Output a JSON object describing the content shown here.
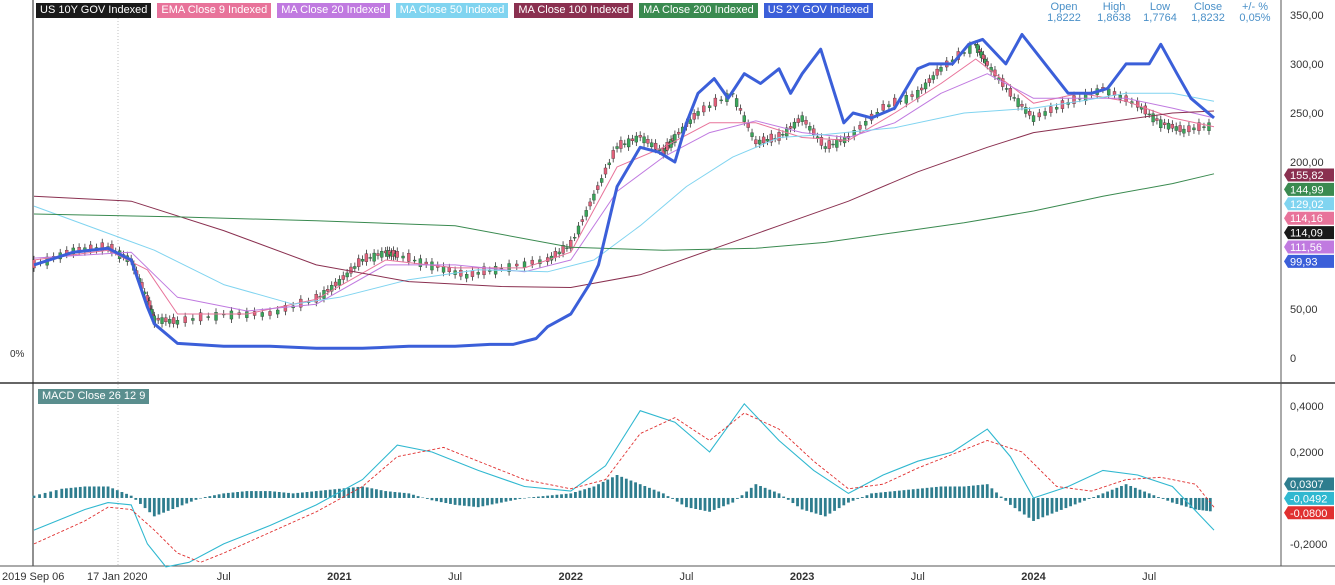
{
  "legend": [
    {
      "label": "US 10Y GOV Indexed",
      "color": "#1a1a1a"
    },
    {
      "label": "EMA Close 9 Indexed",
      "color": "#e8739a"
    },
    {
      "label": "MA Close 20 Indexed",
      "color": "#c07ae0"
    },
    {
      "label": "MA Close 50 Indexed",
      "color": "#80d4f0"
    },
    {
      "label": "MA Close 100 Indexed",
      "color": "#8a3050"
    },
    {
      "label": "MA Close 200 Indexed",
      "color": "#3a8a50"
    },
    {
      "label": "US 2Y GOV Indexed",
      "color": "#3b5fd9"
    }
  ],
  "ohlc": {
    "open_label": "Open",
    "open": "1,8222",
    "high_label": "High",
    "high": "1,8638",
    "low_label": "Low",
    "low": "1,7764",
    "close_label": "Close",
    "close": "1,8232",
    "chg_label": "+/- %",
    "chg": "0,05%"
  },
  "zero_pct_label": "0%",
  "macd_label": "MACD Close 26 12 9",
  "colors": {
    "accent_blue": "#3b5fd9",
    "macd_hist": "#2e7d8e",
    "macd_line": "#30b8d0",
    "signal_line": "#e03030"
  },
  "chart_data": [
    {
      "type": "line",
      "panel": "price",
      "y_ticks": [
        "350,00",
        "300,00",
        "250,00",
        "200,00",
        "50,00",
        "0"
      ],
      "y_tick_values": [
        350,
        300,
        250,
        200,
        50,
        0
      ],
      "ylim": [
        -5,
        355
      ],
      "x_tick_labels": [
        "2019 Sep 06",
        "17 Jan 2020",
        "Jul",
        "2021",
        "Jul",
        "2022",
        "Jul",
        "2023",
        "Jul",
        "2024",
        "Jul"
      ],
      "x_tick_dates": [
        2019.68,
        2020.04,
        2020.5,
        2021.0,
        2021.5,
        2022.0,
        2022.5,
        2023.0,
        2023.5,
        2024.0,
        2024.5
      ],
      "xlim": [
        2019.68,
        2024.78
      ],
      "price_labels": [
        {
          "text": "155,82",
          "value": 155.82,
          "color": "#8a3050"
        },
        {
          "text": "144,99",
          "value": 144.99,
          "color": "#3a8a50"
        },
        {
          "text": "129,02",
          "value": 129.02,
          "color": "#80d4f0"
        },
        {
          "text": "114,16",
          "value": 114.16,
          "color": "#e8739a"
        },
        {
          "text": "114,09",
          "value": 114.09,
          "color": "#1a1a1a"
        },
        {
          "text": "111,56",
          "value": 111.56,
          "color": "#c07ae0"
        },
        {
          "text": "99,93",
          "value": 99.93,
          "color": "#3b5fd9"
        }
      ],
      "series": [
        {
          "name": "US 10Y GOV Indexed",
          "color": "#1a1a1a",
          "style": "candles",
          "x": [
            2019.68,
            2019.85,
            2020.0,
            2020.1,
            2020.17,
            2020.2,
            2020.3,
            2020.5,
            2020.7,
            2020.9,
            2021.0,
            2021.1,
            2021.2,
            2021.25,
            2021.4,
            2021.55,
            2021.7,
            2021.9,
            2022.0,
            2022.1,
            2022.2,
            2022.3,
            2022.4,
            2022.45,
            2022.55,
            2022.7,
            2022.8,
            2022.9,
            2023.0,
            2023.1,
            2023.2,
            2023.35,
            2023.5,
            2023.6,
            2023.75,
            2023.8,
            2023.9,
            2024.0,
            2024.15,
            2024.3,
            2024.45,
            2024.55,
            2024.65,
            2024.78
          ],
          "y": [
            95,
            110,
            113,
            100,
            60,
            40,
            37,
            45,
            45,
            60,
            78,
            100,
            108,
            105,
            95,
            84,
            92,
            100,
            115,
            165,
            215,
            226,
            210,
            225,
            250,
            270,
            220,
            225,
            245,
            215,
            225,
            255,
            270,
            295,
            320,
            300,
            270,
            245,
            260,
            275,
            258,
            240,
            232,
            238
          ]
        },
        {
          "name": "EMA Close 9 Indexed",
          "color": "#e8739a",
          "style": "thin",
          "x": [
            2019.68,
            2020.0,
            2020.17,
            2020.3,
            2020.6,
            2020.9,
            2021.2,
            2021.5,
            2021.8,
            2022.0,
            2022.2,
            2022.4,
            2022.6,
            2022.8,
            2023.0,
            2023.2,
            2023.4,
            2023.6,
            2023.75,
            2024.0,
            2024.2,
            2024.4,
            2024.6,
            2024.78
          ],
          "y": [
            100,
            110,
            90,
            45,
            45,
            60,
            100,
            92,
            92,
            108,
            195,
            215,
            240,
            240,
            225,
            222,
            250,
            280,
            305,
            260,
            270,
            262,
            245,
            236
          ]
        },
        {
          "name": "MA Close 20 Indexed",
          "color": "#c07ae0",
          "style": "thin",
          "x": [
            2019.68,
            2020.1,
            2020.3,
            2020.6,
            2020.9,
            2021.2,
            2021.5,
            2021.8,
            2022.0,
            2022.2,
            2022.4,
            2022.6,
            2022.8,
            2023.0,
            2023.2,
            2023.4,
            2023.6,
            2023.8,
            2024.0,
            2024.2,
            2024.4,
            2024.6,
            2024.78
          ],
          "y": [
            102,
            108,
            62,
            48,
            55,
            95,
            95,
            88,
            100,
            170,
            205,
            230,
            242,
            230,
            225,
            240,
            270,
            290,
            265,
            265,
            265,
            255,
            245
          ]
        },
        {
          "name": "MA Close 50 Indexed",
          "color": "#80d4f0",
          "style": "thin",
          "x": [
            2019.68,
            2020.2,
            2020.5,
            2020.8,
            2021.0,
            2021.3,
            2021.6,
            2021.9,
            2022.1,
            2022.3,
            2022.5,
            2022.7,
            2022.9,
            2023.1,
            2023.4,
            2023.7,
            2024.0,
            2024.2,
            2024.4,
            2024.6,
            2024.78
          ],
          "y": [
            155,
            110,
            75,
            55,
            62,
            80,
            90,
            88,
            100,
            135,
            175,
            205,
            225,
            228,
            235,
            250,
            255,
            262,
            270,
            270,
            262
          ]
        },
        {
          "name": "MA Close 100 Indexed",
          "color": "#8a3050",
          "style": "thin",
          "x": [
            2019.68,
            2020.1,
            2020.5,
            2020.9,
            2021.3,
            2021.7,
            2022.0,
            2022.3,
            2022.6,
            2022.9,
            2023.2,
            2023.5,
            2023.8,
            2024.0,
            2024.3,
            2024.6,
            2024.78
          ],
          "y": [
            165,
            160,
            130,
            95,
            78,
            73,
            72,
            85,
            110,
            135,
            160,
            190,
            215,
            230,
            240,
            250,
            252
          ]
        },
        {
          "name": "MA Close 200 Indexed",
          "color": "#3a8a50",
          "style": "thin",
          "x": [
            2019.68,
            2020.3,
            2020.9,
            2021.5,
            2022.0,
            2022.4,
            2022.8,
            2023.1,
            2023.4,
            2023.7,
            2024.0,
            2024.3,
            2024.6,
            2024.78
          ],
          "y": [
            147,
            144,
            140,
            135,
            113,
            110,
            112,
            118,
            128,
            138,
            150,
            165,
            178,
            188
          ]
        },
        {
          "name": "US 2Y GOV Indexed",
          "color": "#3b5fd9",
          "style": "bold",
          "x": [
            2019.68,
            2019.85,
            2020.0,
            2020.1,
            2020.17,
            2020.2,
            2020.3,
            2020.5,
            2020.7,
            2020.9,
            2021.1,
            2021.3,
            2021.5,
            2021.65,
            2021.75,
            2021.85,
            2021.9,
            2022.0,
            2022.08,
            2022.12,
            2022.2,
            2022.3,
            2022.38,
            2022.45,
            2022.5,
            2022.55,
            2022.62,
            2022.68,
            2022.75,
            2022.82,
            2022.9,
            2022.95,
            2023.0,
            2023.08,
            2023.12,
            2023.18,
            2023.22,
            2023.3,
            2023.4,
            2023.5,
            2023.55,
            2023.65,
            2023.72,
            2023.78,
            2023.88,
            2023.95,
            2024.05,
            2024.15,
            2024.25,
            2024.32,
            2024.4,
            2024.5,
            2024.55,
            2024.62,
            2024.68,
            2024.78
          ],
          "y": [
            95,
            108,
            112,
            100,
            52,
            35,
            15,
            12,
            12,
            10,
            10,
            12,
            12,
            14,
            14,
            20,
            32,
            45,
            75,
            95,
            175,
            215,
            210,
            200,
            240,
            270,
            285,
            265,
            290,
            280,
            295,
            270,
            290,
            315,
            285,
            240,
            250,
            245,
            255,
            295,
            300,
            300,
            320,
            325,
            300,
            330,
            300,
            270,
            270,
            275,
            300,
            300,
            320,
            290,
            265,
            245
          ]
        }
      ]
    },
    {
      "type": "bar",
      "panel": "macd",
      "y_ticks": [
        "0,4000",
        "0,2000",
        "-0,2000"
      ],
      "y_tick_values": [
        0.4,
        0.2,
        -0.2
      ],
      "ylim": [
        -0.27,
        0.47
      ],
      "price_labels": [
        {
          "text": "0,0307",
          "value": 0.0307,
          "color": "#2e7d8e"
        },
        {
          "text": "-0,0492",
          "value": -0.0492,
          "color": "#30b8d0"
        },
        {
          "text": "-0,0800",
          "value": -0.08,
          "color": "#e03030"
        }
      ],
      "series": [
        {
          "name": "MACD Close 26 12 9",
          "style": "histogram",
          "color": "#2e7d8e",
          "x": [
            2019.68,
            2019.8,
            2019.9,
            2020.0,
            2020.1,
            2020.2,
            2020.3,
            2020.4,
            2020.5,
            2020.6,
            2020.7,
            2020.8,
            2020.9,
            2021.0,
            2021.1,
            2021.2,
            2021.3,
            2021.4,
            2021.5,
            2021.6,
            2021.7,
            2021.8,
            2021.9,
            2022.0,
            2022.1,
            2022.2,
            2022.3,
            2022.4,
            2022.5,
            2022.6,
            2022.7,
            2022.8,
            2022.9,
            2023.0,
            2023.1,
            2023.2,
            2023.3,
            2023.4,
            2023.5,
            2023.6,
            2023.7,
            2023.8,
            2023.9,
            2024.0,
            2024.1,
            2024.2,
            2024.3,
            2024.4,
            2024.5,
            2024.6,
            2024.7,
            2024.78
          ],
          "y": [
            0.01,
            0.04,
            0.05,
            0.05,
            0.01,
            -0.08,
            -0.04,
            0.0,
            0.02,
            0.03,
            0.03,
            0.02,
            0.03,
            0.04,
            0.05,
            0.03,
            0.02,
            -0.01,
            -0.03,
            -0.04,
            -0.02,
            0.0,
            0.01,
            0.02,
            0.05,
            0.1,
            0.06,
            0.02,
            -0.04,
            -0.06,
            -0.02,
            0.06,
            0.02,
            -0.05,
            -0.08,
            -0.02,
            0.02,
            0.03,
            0.04,
            0.05,
            0.05,
            0.06,
            -0.03,
            -0.1,
            -0.06,
            -0.02,
            0.02,
            0.06,
            0.02,
            -0.02,
            -0.05,
            -0.06
          ]
        },
        {
          "name": "MACD line",
          "style": "line",
          "color": "#30b8d0",
          "x": [
            2019.68,
            2019.9,
            2020.0,
            2020.1,
            2020.17,
            2020.25,
            2020.35,
            2020.5,
            2020.7,
            2020.9,
            2021.1,
            2021.25,
            2021.4,
            2021.6,
            2021.8,
            2022.0,
            2022.15,
            2022.3,
            2022.45,
            2022.6,
            2022.75,
            2022.9,
            2023.05,
            2023.2,
            2023.35,
            2023.5,
            2023.65,
            2023.8,
            2023.9,
            2024.0,
            2024.15,
            2024.3,
            2024.45,
            2024.6,
            2024.78
          ],
          "y": [
            -0.14,
            -0.05,
            -0.02,
            -0.03,
            -0.2,
            -0.3,
            -0.28,
            -0.2,
            -0.12,
            -0.03,
            0.08,
            0.23,
            0.2,
            0.12,
            0.05,
            0.03,
            0.14,
            0.38,
            0.33,
            0.2,
            0.41,
            0.25,
            0.12,
            0.02,
            0.1,
            0.16,
            0.2,
            0.3,
            0.18,
            0.0,
            0.05,
            0.12,
            0.1,
            0.05,
            -0.14
          ]
        },
        {
          "name": "Signal line",
          "style": "dashed",
          "color": "#e03030",
          "x": [
            2019.68,
            2019.9,
            2020.0,
            2020.1,
            2020.2,
            2020.3,
            2020.4,
            2020.5,
            2020.7,
            2020.9,
            2021.1,
            2021.25,
            2021.45,
            2021.6,
            2021.8,
            2022.0,
            2022.15,
            2022.3,
            2022.45,
            2022.6,
            2022.75,
            2022.9,
            2023.05,
            2023.2,
            2023.35,
            2023.5,
            2023.65,
            2023.8,
            2023.95,
            2024.1,
            2024.25,
            2024.4,
            2024.55,
            2024.7,
            2024.78
          ],
          "y": [
            -0.2,
            -0.1,
            -0.04,
            -0.05,
            -0.14,
            -0.24,
            -0.28,
            -0.24,
            -0.15,
            -0.06,
            0.05,
            0.18,
            0.22,
            0.16,
            0.08,
            0.04,
            0.08,
            0.28,
            0.35,
            0.25,
            0.37,
            0.3,
            0.16,
            0.04,
            0.06,
            0.13,
            0.19,
            0.25,
            0.2,
            0.05,
            0.03,
            0.08,
            0.09,
            0.06,
            -0.04
          ]
        }
      ]
    }
  ]
}
